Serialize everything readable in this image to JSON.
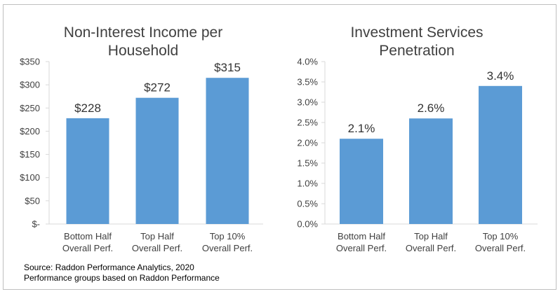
{
  "chart_data": [
    {
      "type": "bar",
      "title_lines": [
        "Non-Interest Income per",
        "Household"
      ],
      "categories": [
        [
          "Bottom Half",
          "Overall Perf."
        ],
        [
          "Top Half",
          "Overall Perf."
        ],
        [
          "Top 10%",
          "Overall Perf."
        ]
      ],
      "values": [
        228,
        272,
        315
      ],
      "data_labels": [
        "$228",
        "$272",
        "$315"
      ],
      "yticks": [
        0,
        50,
        100,
        150,
        200,
        250,
        300,
        350
      ],
      "ytick_labels": [
        "$-",
        "$50",
        "$100",
        "$150",
        "$200",
        "$250",
        "$300",
        "$350"
      ],
      "ylim": [
        0,
        350
      ],
      "grid": false,
      "bar_color": "#5b9bd5"
    },
    {
      "type": "bar",
      "title_lines": [
        "Investment Services",
        "Penetration"
      ],
      "categories": [
        [
          "Bottom Half",
          "Overall Perf."
        ],
        [
          "Top Half",
          "Overall Perf."
        ],
        [
          "Top 10%",
          "Overall Perf."
        ]
      ],
      "values": [
        2.1,
        2.6,
        3.4
      ],
      "data_labels": [
        "2.1%",
        "2.6%",
        "3.4%"
      ],
      "yticks": [
        0,
        0.5,
        1,
        1.5,
        2,
        2.5,
        3,
        3.5,
        4
      ],
      "ytick_labels": [
        "0.0%",
        "0.5%",
        "1.0%",
        "1.5%",
        "2.0%",
        "2.5%",
        "3.0%",
        "3.5%",
        "4.0%"
      ],
      "ylim": [
        0,
        4
      ],
      "grid": false,
      "bar_color": "#5b9bd5"
    }
  ],
  "source": {
    "line1": "Source: Raddon Performance Analytics, 2020",
    "line2": "Performance groups based on Raddon Performance"
  }
}
